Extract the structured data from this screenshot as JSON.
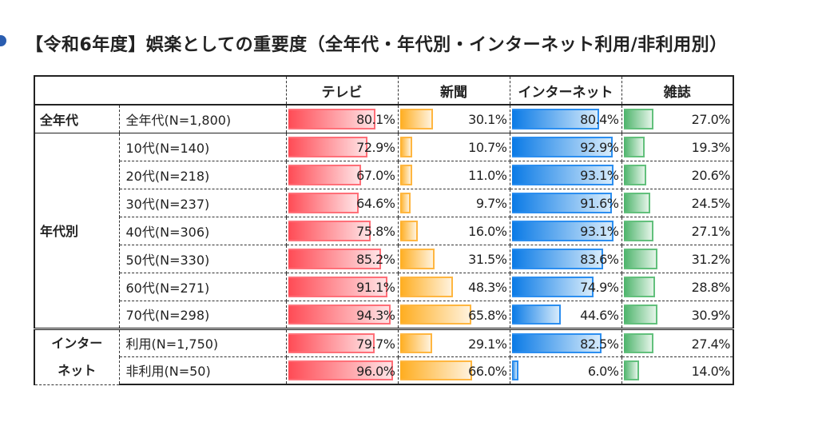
{
  "title": "【令和6年度】娯楽としての重要度（全年代・年代別・インターネット利用/非利用別）",
  "chart_data": {
    "type": "table",
    "title": "【令和6年度】娯楽としての重要度（全年代・年代別・インターネット利用/非利用別）",
    "columns": [
      "テレビ",
      "新聞",
      "インターネット",
      "雑誌"
    ],
    "unit": "%",
    "colors": {
      "テレビ": "#ff4b55",
      "新聞": "#ffad1f",
      "インターネット": "#0a7ae6",
      "雑誌": "#4cb36a"
    },
    "groups": [
      {
        "name": "全年代",
        "rows": [
          {
            "label": "全年代(N=1,800)",
            "values": [
              80.1,
              30.1,
              80.4,
              27.0
            ]
          }
        ]
      },
      {
        "name": "年代別",
        "rows": [
          {
            "label": "10代(N=140)",
            "values": [
              72.9,
              10.7,
              92.9,
              19.3
            ]
          },
          {
            "label": "20代(N=218)",
            "values": [
              67.0,
              11.0,
              93.1,
              20.6
            ]
          },
          {
            "label": "30代(N=237)",
            "values": [
              64.6,
              9.7,
              91.6,
              24.5
            ]
          },
          {
            "label": "40代(N=306)",
            "values": [
              75.8,
              16.0,
              93.1,
              27.1
            ]
          },
          {
            "label": "50代(N=330)",
            "values": [
              85.2,
              31.5,
              83.6,
              31.2
            ]
          },
          {
            "label": "60代(N=271)",
            "values": [
              91.1,
              48.3,
              74.9,
              28.8
            ]
          },
          {
            "label": "70代(N=298)",
            "values": [
              94.3,
              65.8,
              44.6,
              30.9
            ]
          }
        ]
      },
      {
        "name": "インターネット",
        "name_lines": [
          "インター",
          "ネット"
        ],
        "rows": [
          {
            "label": "利用(N=1,750)",
            "values": [
              79.7,
              29.1,
              82.5,
              27.4
            ]
          },
          {
            "label": "非利用(N=50)",
            "values": [
              96.0,
              66.0,
              6.0,
              14.0
            ]
          }
        ]
      }
    ]
  }
}
